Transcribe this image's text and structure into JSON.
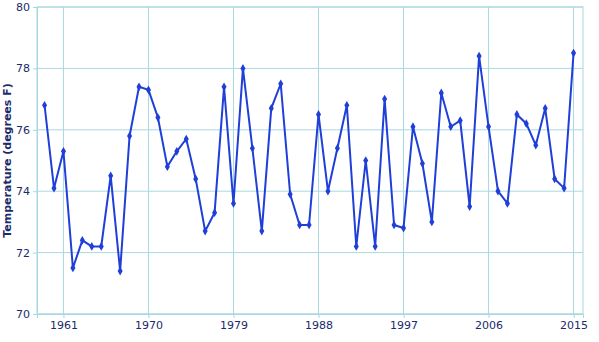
{
  "chart_data": {
    "type": "line",
    "y_label": "Temperature (degrees F)",
    "x": [
      1959,
      1960,
      1961,
      1962,
      1963,
      1964,
      1965,
      1966,
      1967,
      1968,
      1969,
      1970,
      1971,
      1972,
      1973,
      1974,
      1975,
      1976,
      1977,
      1978,
      1979,
      1980,
      1981,
      1982,
      1983,
      1984,
      1985,
      1986,
      1987,
      1988,
      1989,
      1990,
      1991,
      1992,
      1993,
      1994,
      1995,
      1996,
      1997,
      1998,
      1999,
      2000,
      2001,
      2002,
      2003,
      2004,
      2005,
      2006,
      2007,
      2008,
      2009,
      2010,
      2011,
      2012,
      2013,
      2014,
      2015
    ],
    "values": [
      76.8,
      74.1,
      75.3,
      71.5,
      72.4,
      72.2,
      72.2,
      74.5,
      71.4,
      75.8,
      77.4,
      77.3,
      76.4,
      74.8,
      75.3,
      75.7,
      74.4,
      72.7,
      73.3,
      77.4,
      73.6,
      78.0,
      75.4,
      72.7,
      76.7,
      77.5,
      73.9,
      72.9,
      72.9,
      76.5,
      74.0,
      75.4,
      76.8,
      72.2,
      75.0,
      72.2,
      77.0,
      72.9,
      72.8,
      76.1,
      74.9,
      73.0,
      77.2,
      76.1,
      76.3,
      73.5,
      78.4,
      76.1,
      74.0,
      73.6,
      76.5,
      76.2,
      75.5,
      76.7,
      74.4,
      74.1,
      78.5
    ],
    "color": "#1f3fd8",
    "marker": "diamond",
    "xlim": [
      1958.2,
      2016
    ],
    "xticks": [
      1961,
      1970,
      1979,
      1988,
      1997,
      2006,
      2015
    ],
    "ylim": [
      70,
      80
    ],
    "yticks": [
      70,
      72,
      74,
      76,
      78,
      80
    ],
    "grid": true
  }
}
